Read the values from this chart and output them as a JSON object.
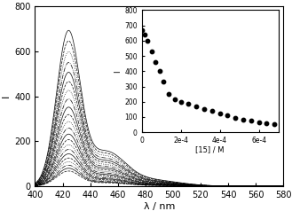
{
  "xlabel": "λ / nm",
  "ylabel": "I",
  "xlim": [
    400,
    580
  ],
  "ylim": [
    0,
    800
  ],
  "xticks": [
    400,
    420,
    440,
    460,
    480,
    500,
    520,
    540,
    560,
    580
  ],
  "yticks": [
    0,
    200,
    400,
    600,
    800
  ],
  "peak_wavelength": 424,
  "num_spectra": 22,
  "peak_heights": [
    670,
    625,
    578,
    532,
    490,
    450,
    412,
    375,
    340,
    308,
    278,
    250,
    224,
    200,
    178,
    158,
    139,
    121,
    105,
    90,
    77,
    65
  ],
  "inset": {
    "xlim": [
      0,
      0.0007
    ],
    "ylim": [
      0,
      800
    ],
    "xticks": [
      0,
      0.0002,
      0.0004,
      0.0006
    ],
    "xticklabels": [
      "0",
      "2e-4",
      "4e-4",
      "6e-4"
    ],
    "yticks": [
      0,
      100,
      200,
      300,
      400,
      500,
      600,
      700,
      800
    ],
    "ytick_labels": [
      "0",
      "100",
      "200",
      "300",
      "400",
      "500",
      "600",
      "700",
      "800"
    ],
    "xlabel": "[15] / M",
    "ylabel": "I",
    "concentrations": [
      0,
      1.5e-05,
      3e-05,
      5e-05,
      7e-05,
      9e-05,
      0.00011,
      0.00014,
      0.00017,
      0.0002,
      0.00024,
      0.00028,
      0.00032,
      0.00036,
      0.0004,
      0.00044,
      0.00048,
      0.00052,
      0.00056,
      0.0006,
      0.00064,
      0.00068
    ],
    "intensities": [
      670,
      640,
      600,
      530,
      460,
      400,
      330,
      250,
      215,
      200,
      185,
      170,
      155,
      140,
      125,
      110,
      95,
      85,
      75,
      65,
      58,
      52
    ]
  }
}
